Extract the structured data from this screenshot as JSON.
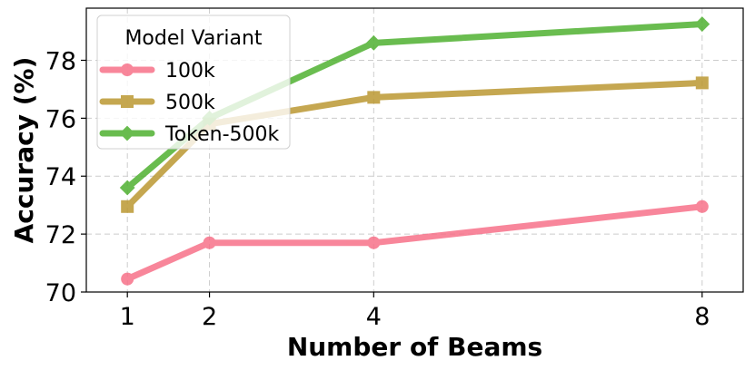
{
  "chart_data": {
    "type": "line",
    "title": "",
    "xlabel": "Number of Beams",
    "ylabel": "Accuracy (%)",
    "x": [
      1,
      2,
      4,
      8
    ],
    "xticks": [
      1,
      2,
      4,
      8
    ],
    "yticks": [
      70,
      72,
      74,
      76,
      78
    ],
    "xlim": [
      0.5,
      8.5
    ],
    "ylim": [
      70,
      79.8
    ],
    "grid": true,
    "legend": {
      "title": "Model Variant",
      "placement": "top-left"
    },
    "series": [
      {
        "name": "100k",
        "values": [
          70.45,
          71.7,
          71.7,
          72.95
        ],
        "color": "#f77189",
        "marker": "circle"
      },
      {
        "name": "500k",
        "values": [
          72.95,
          75.8,
          76.72,
          77.22
        ],
        "color": "#bb9832",
        "marker": "square"
      },
      {
        "name": "Token-500k",
        "values": [
          73.6,
          76.0,
          78.6,
          79.25
        ],
        "color": "#50b131",
        "marker": "diamond"
      }
    ]
  }
}
